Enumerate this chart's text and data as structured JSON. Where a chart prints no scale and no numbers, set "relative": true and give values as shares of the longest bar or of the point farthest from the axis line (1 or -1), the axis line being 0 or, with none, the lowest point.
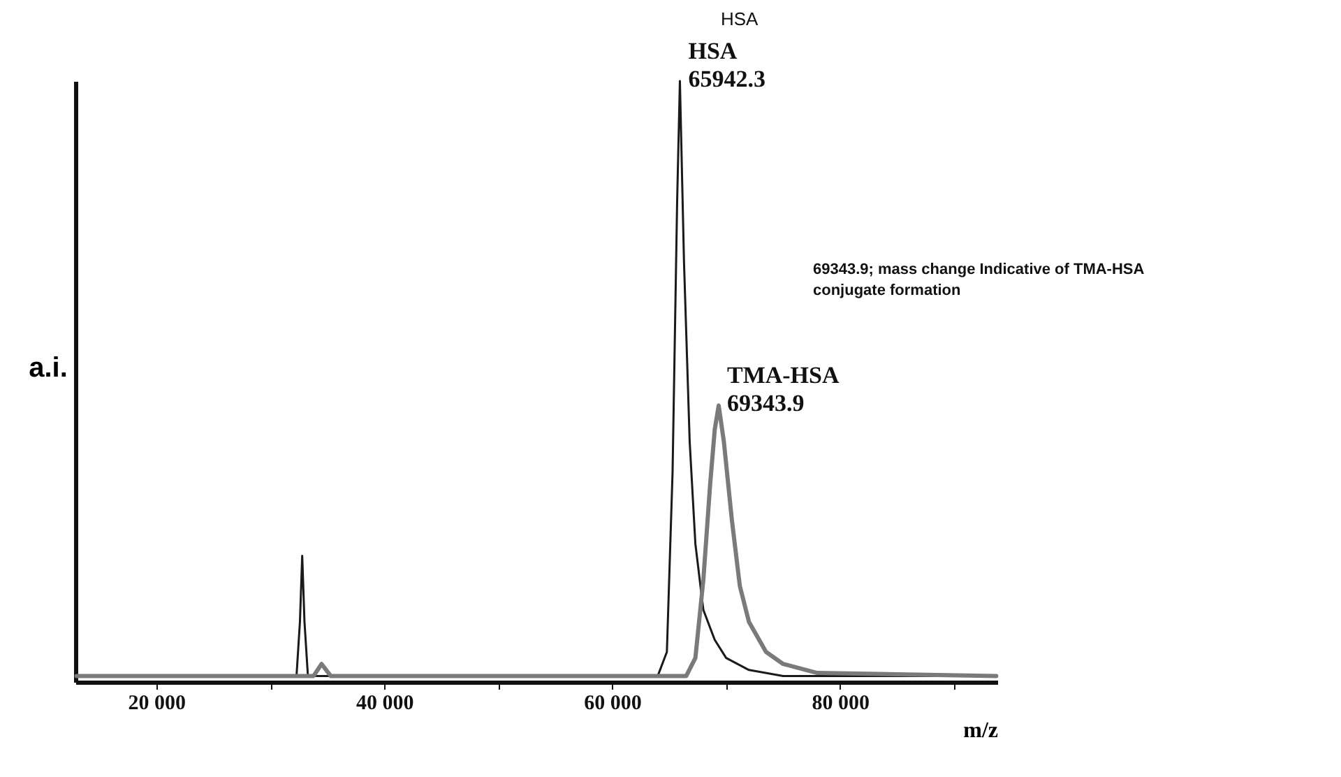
{
  "chart_data": {
    "type": "line",
    "relative": true,
    "ylabel": "a.i.",
    "xlabel": "m/z",
    "xlim": [
      12900,
      93800
    ],
    "xticks": [
      {
        "value": 20000,
        "label": "20 000"
      },
      {
        "value": 30000,
        "label": null
      },
      {
        "value": 40000,
        "label": "40 000"
      },
      {
        "value": 50000,
        "label": null
      },
      {
        "value": 60000,
        "label": "60 000"
      },
      {
        "value": 70000,
        "label": null
      },
      {
        "value": 80000,
        "label": "80 000"
      },
      {
        "value": 90000,
        "label": null
      }
    ],
    "series": [
      {
        "color": "#1a1a1a",
        "x": [
          13000,
          20000,
          32300,
          32600,
          32800,
          33000,
          33300,
          40000,
          60000,
          64000,
          64800,
          65300,
          65700,
          65942,
          66300,
          66800,
          67300,
          68000,
          69000,
          70000,
          72000,
          75000,
          80000,
          93700
        ],
        "values": [
          0.01,
          0.01,
          0.01,
          0.1,
          0.21,
          0.1,
          0.01,
          0.01,
          0.01,
          0.01,
          0.05,
          0.35,
          0.8,
          1.0,
          0.7,
          0.4,
          0.23,
          0.12,
          0.07,
          0.04,
          0.02,
          0.01,
          0.01,
          0.01
        ]
      },
      {
        "color": "#7a7a7a",
        "x": [
          13000,
          20000,
          33800,
          34500,
          35300,
          40000,
          60000,
          66500,
          67300,
          68000,
          68600,
          69000,
          69344,
          69800,
          70500,
          71200,
          72000,
          73500,
          75000,
          78000,
          93700
        ],
        "values": [
          0.01,
          0.01,
          0.01,
          0.03,
          0.01,
          0.01,
          0.01,
          0.01,
          0.04,
          0.17,
          0.33,
          0.42,
          0.46,
          0.4,
          0.27,
          0.16,
          0.1,
          0.05,
          0.03,
          0.015,
          0.01
        ]
      }
    ],
    "annotations": [
      {
        "text": "HSA\n65942.3",
        "x": 65942,
        "y": 1.0
      },
      {
        "text": "TMA-HSA\n69343.9",
        "x": 69344,
        "y": 0.46
      },
      "HSA",
      "69343.9;  mass change Indicative of TMA-HSA\nconjugate formation"
    ]
  }
}
